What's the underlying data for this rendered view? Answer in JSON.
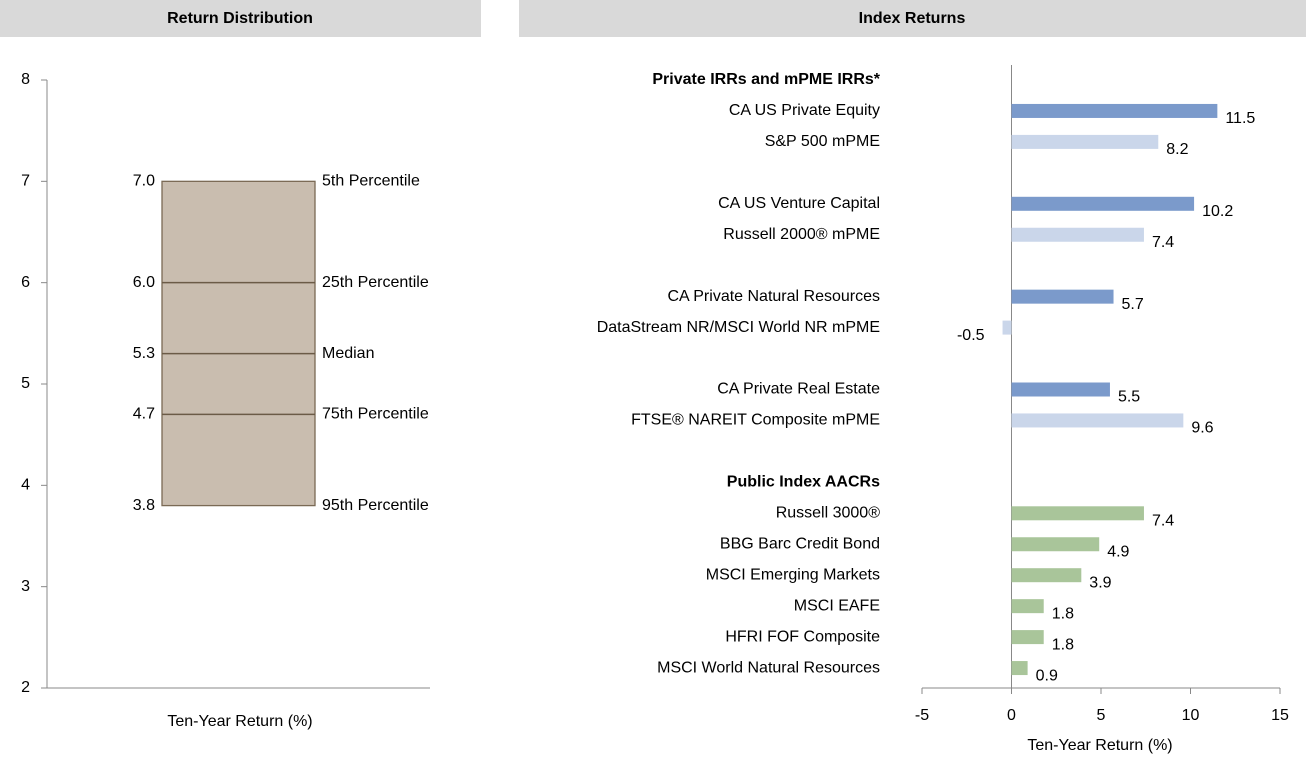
{
  "chart_data": [
    {
      "type": "box",
      "title": "Return Distribution",
      "xlabel": "Ten-Year Return (%)",
      "categories": [
        "5th Percentile",
        "25th Percentile",
        "Median",
        "75th Percentile",
        "95th Percentile"
      ],
      "values": [
        7.0,
        6.0,
        5.3,
        4.7,
        3.8
      ],
      "value_labels": [
        "7.0",
        "6.0",
        "5.3",
        "4.7",
        "3.8"
      ],
      "color": "#c9bdaf",
      "ylim": [
        2,
        8
      ],
      "yticks": [
        2,
        3,
        4,
        5,
        6,
        7,
        8
      ]
    },
    {
      "type": "hbar",
      "title": "Index Returns",
      "xlabel": "Ten-Year Return (%)",
      "categories": [
        "Private IRRs and mPME IRRs*",
        "CA US Private Equity",
        "S&P 500 mPME",
        null,
        "CA US Venture Capital",
        "Russell 2000® mPME",
        null,
        "CA Private Natural Resources",
        "DataStream NR/MSCI World NR mPME",
        null,
        "CA Private Real Estate",
        "FTSE® NAREIT Composite mPME",
        null,
        "Public Index AACRs",
        "Russell 3000®",
        "BBG Barc Credit Bond",
        "MSCI Emerging Markets",
        "MSCI EAFE",
        "HFRI FOF Composite",
        "MSCI World Natural Resources"
      ],
      "values": [
        null,
        11.5,
        8.2,
        null,
        10.2,
        7.4,
        null,
        5.7,
        -0.5,
        null,
        5.5,
        9.6,
        null,
        null,
        7.4,
        4.9,
        3.9,
        1.8,
        1.8,
        0.9
      ],
      "colors": [
        null,
        "#7b9acb",
        "#cad6ea",
        null,
        "#7b9acb",
        "#cad6ea",
        null,
        "#7b9acb",
        "#cad6ea",
        null,
        "#7b9acb",
        "#cad6ea",
        null,
        null,
        "#a9c59a",
        "#a9c59a",
        "#a9c59a",
        "#a9c59a",
        "#a9c59a",
        "#a9c59a"
      ],
      "xlim": [
        -5,
        15
      ],
      "xticks": [
        -5,
        0,
        5,
        10,
        15
      ]
    }
  ]
}
